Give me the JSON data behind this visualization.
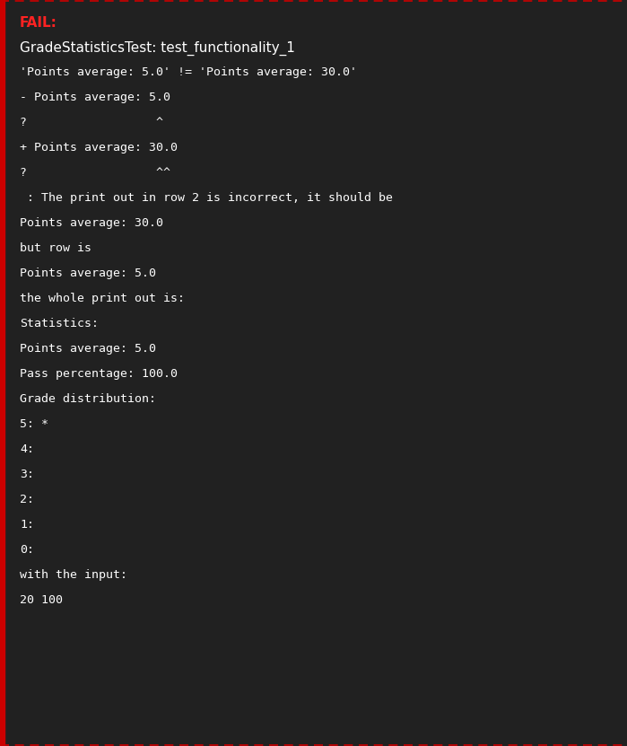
{
  "bg_color": "#212121",
  "border_color": "#cc0000",
  "left_bar_color": "#cc0000",
  "fail_label": "FAIL:",
  "fail_color": "#ff2222",
  "monospace_font": "DejaVu Sans Mono",
  "sans_font": "DejaVu Sans",
  "fig_width": 6.99,
  "fig_height": 8.31,
  "dpi": 100,
  "lines": [
    {
      "text": "GradeStatisticsTest: test_functionality_1",
      "mono": false
    },
    {
      "text": "'Points average: 5.0' != 'Points average: 30.0'",
      "mono": true
    },
    {
      "text": "- Points average: 5.0",
      "mono": true
    },
    {
      "text": "?                  ^",
      "mono": true
    },
    {
      "text": "+ Points average: 30.0",
      "mono": true
    },
    {
      "text": "?                  ^^",
      "mono": true
    },
    {
      "text": " : The print out in row 2 is incorrect, it should be",
      "mono": true
    },
    {
      "text": "Points average: 30.0",
      "mono": true
    },
    {
      "text": "but row is",
      "mono": true
    },
    {
      "text": "Points average: 5.0",
      "mono": true
    },
    {
      "text": "the whole print out is:",
      "mono": true
    },
    {
      "text": "Statistics:",
      "mono": true
    },
    {
      "text": "Points average: 5.0",
      "mono": true
    },
    {
      "text": "Pass percentage: 100.0",
      "mono": true
    },
    {
      "text": "Grade distribution:",
      "mono": true
    },
    {
      "text": "5: *",
      "mono": true
    },
    {
      "text": "4:",
      "mono": true
    },
    {
      "text": "3:",
      "mono": true
    },
    {
      "text": "2:",
      "mono": true
    },
    {
      "text": "1:",
      "mono": true
    },
    {
      "text": "0:",
      "mono": true
    },
    {
      "text": "with the input:",
      "mono": true
    },
    {
      "text": "20 100",
      "mono": true
    }
  ]
}
